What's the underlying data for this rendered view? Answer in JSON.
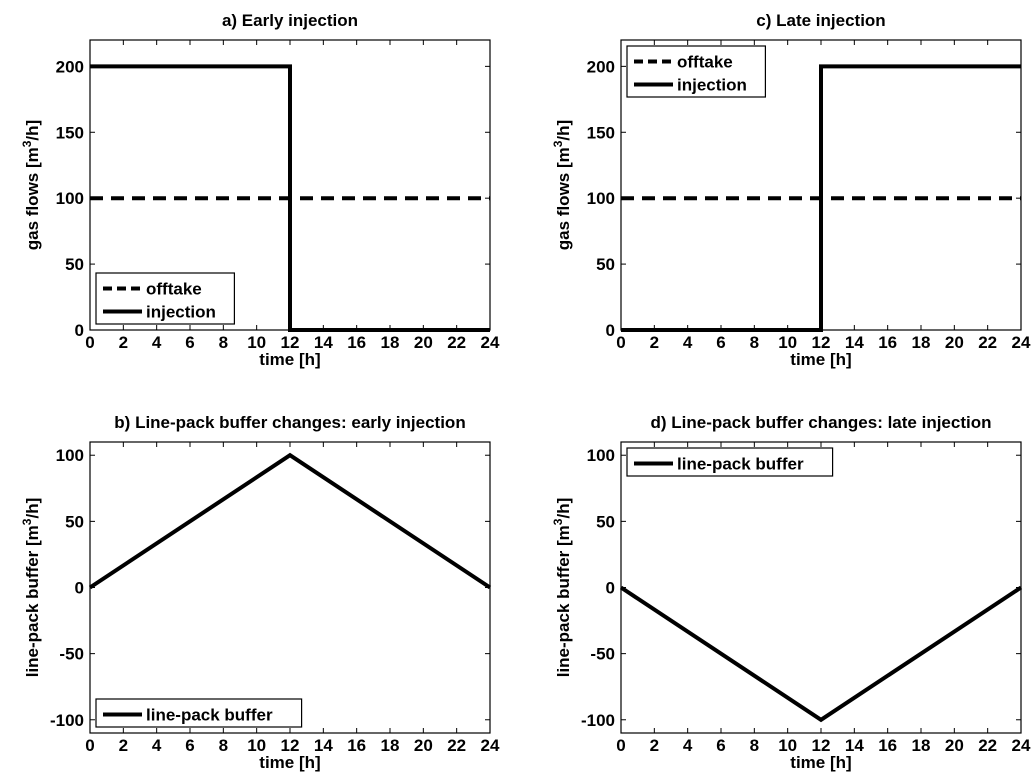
{
  "chart_data": [
    {
      "id": "a",
      "type": "line",
      "title": "a) Early injection",
      "xlabel": "time [h]",
      "ylabel": "gas flows [m³/h]",
      "xlim": [
        0,
        24
      ],
      "ylim": [
        0,
        220
      ],
      "xticks": [
        0,
        2,
        4,
        6,
        8,
        10,
        12,
        14,
        16,
        18,
        20,
        22,
        24
      ],
      "yticks": [
        0,
        50,
        100,
        150,
        200
      ],
      "grid": false,
      "legend_position": "bottom-left",
      "series": [
        {
          "name": "offtake",
          "style": "dashed",
          "x": [
            0,
            24
          ],
          "y": [
            100,
            100
          ]
        },
        {
          "name": "injection",
          "style": "solid",
          "x": [
            0,
            12,
            12,
            24
          ],
          "y": [
            200,
            200,
            0,
            0
          ]
        }
      ]
    },
    {
      "id": "c",
      "type": "line",
      "title": "c) Late injection",
      "xlabel": "time [h]",
      "ylabel": "gas flows [m³/h]",
      "xlim": [
        0,
        24
      ],
      "ylim": [
        0,
        220
      ],
      "xticks": [
        0,
        2,
        4,
        6,
        8,
        10,
        12,
        14,
        16,
        18,
        20,
        22,
        24
      ],
      "yticks": [
        0,
        50,
        100,
        150,
        200
      ],
      "grid": false,
      "legend_position": "top-left",
      "series": [
        {
          "name": "offtake",
          "style": "dashed",
          "x": [
            0,
            24
          ],
          "y": [
            100,
            100
          ]
        },
        {
          "name": "injection",
          "style": "solid",
          "x": [
            0,
            12,
            12,
            24
          ],
          "y": [
            0,
            0,
            200,
            200
          ]
        }
      ]
    },
    {
      "id": "b",
      "type": "line",
      "title": "b) Line-pack buffer changes: early injection",
      "xlabel": "time [h]",
      "ylabel": "line-pack buffer [m³/h]",
      "xlim": [
        0,
        24
      ],
      "ylim": [
        -110,
        110
      ],
      "xticks": [
        0,
        2,
        4,
        6,
        8,
        10,
        12,
        14,
        16,
        18,
        20,
        22,
        24
      ],
      "yticks": [
        -100,
        -50,
        0,
        50,
        100
      ],
      "grid": false,
      "legend_position": "bottom-left",
      "series": [
        {
          "name": "line-pack buffer",
          "style": "solid",
          "x": [
            0,
            12,
            24
          ],
          "y": [
            0,
            100,
            0
          ]
        }
      ]
    },
    {
      "id": "d",
      "type": "line",
      "title": "d) Line-pack buffer changes: late injection",
      "xlabel": "time [h]",
      "ylabel": "line-pack buffer [m³/h]",
      "xlim": [
        0,
        24
      ],
      "ylim": [
        -110,
        110
      ],
      "xticks": [
        0,
        2,
        4,
        6,
        8,
        10,
        12,
        14,
        16,
        18,
        20,
        22,
        24
      ],
      "yticks": [
        -100,
        -50,
        0,
        50,
        100
      ],
      "grid": false,
      "legend_position": "top-left",
      "series": [
        {
          "name": "line-pack buffer",
          "style": "solid",
          "x": [
            0,
            12,
            24
          ],
          "y": [
            0,
            -100,
            0
          ]
        }
      ]
    }
  ]
}
